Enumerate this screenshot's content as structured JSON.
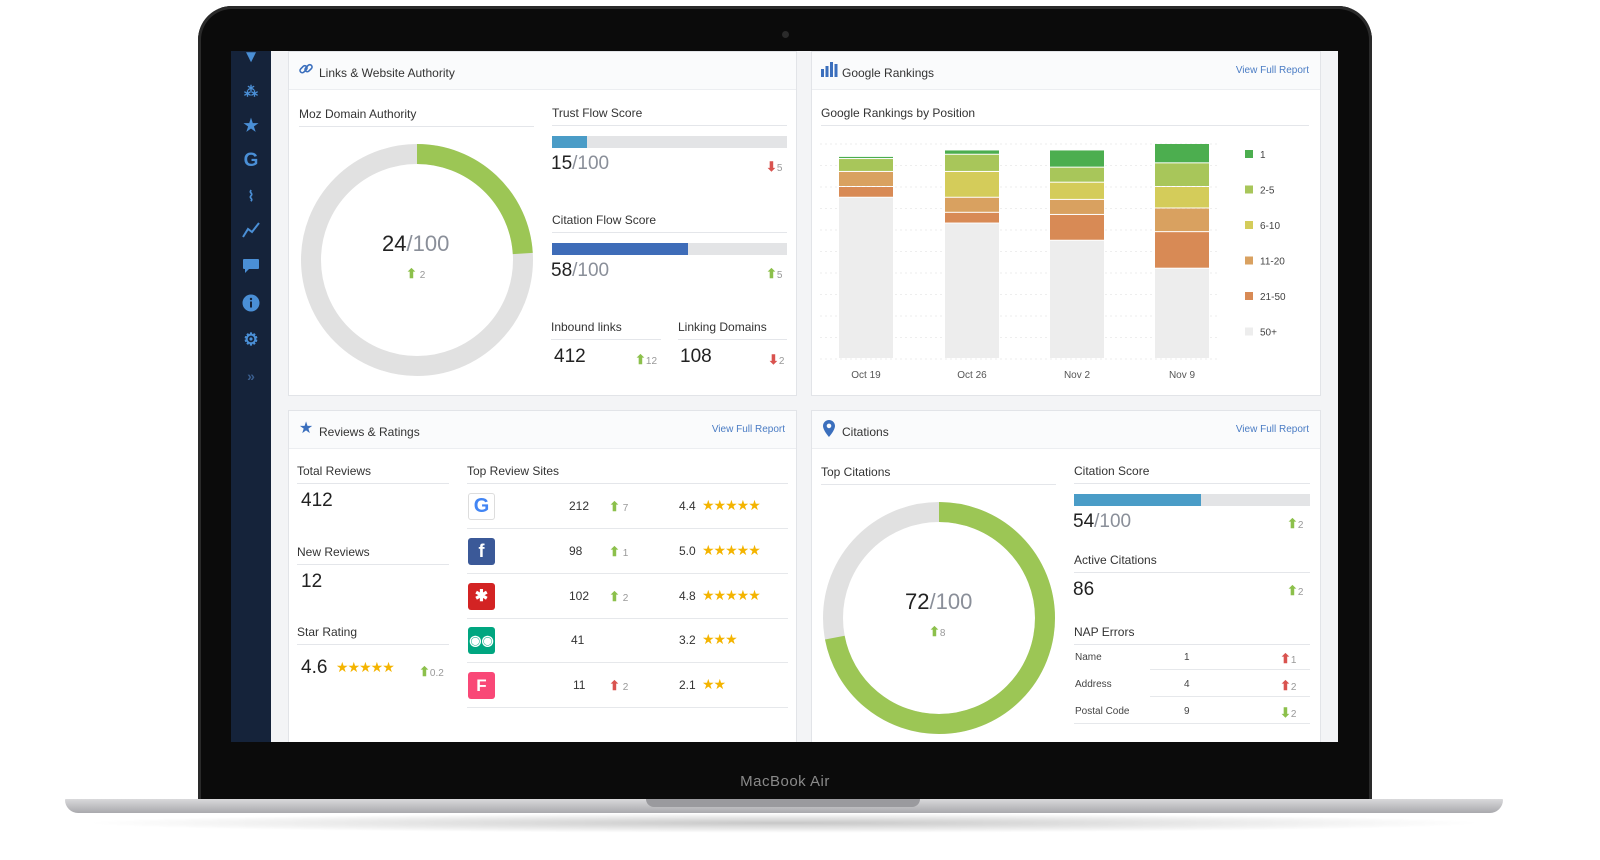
{
  "device": {
    "brand": "MacBook Air"
  },
  "sidebar": {
    "icons": [
      "map-pin-icon",
      "network-icon",
      "star-icon",
      "google-icon",
      "activity-icon",
      "trend-icon",
      "chat-icon",
      "info-icon",
      "gear-icon",
      "expand-icon"
    ]
  },
  "links": {
    "title": "Links & Website Authority",
    "moz": {
      "label": "Moz Domain Authority",
      "value": "24",
      "den": "/100",
      "change": "2",
      "fraction": 0.24
    },
    "trust": {
      "label": "Trust Flow Score",
      "value": "15",
      "den": "/100",
      "change": "5",
      "fraction": 0.15,
      "color": "#4a9cc7"
    },
    "citation_flow": {
      "label": "Citation Flow Score",
      "value": "58",
      "den": "/100",
      "change": "5",
      "fraction": 0.58,
      "color": "#3e6cb8"
    },
    "inbound": {
      "label": "Inbound links",
      "value": "412",
      "change": "12"
    },
    "linking": {
      "label": "Linking Domains",
      "value": "108",
      "change": "2"
    }
  },
  "rankings": {
    "title": "Google Rankings",
    "view_full": "View Full Report",
    "subtitle": "Google Rankings by Position"
  },
  "chart_data": {
    "type": "bar",
    "stacked": true,
    "categories": [
      "Oct 19",
      "Oct 26",
      "Nov 2",
      "Nov 9"
    ],
    "series": [
      {
        "name": "50+",
        "color": "#ededed",
        "values": [
          75,
          63,
          55,
          42
        ]
      },
      {
        "name": "21-50",
        "color": "#d88a55",
        "values": [
          5,
          5,
          12,
          17
        ]
      },
      {
        "name": "11-20",
        "color": "#d9a160",
        "values": [
          7,
          7,
          7,
          11
        ]
      },
      {
        "name": "6-10",
        "color": "#d4cc5a",
        "values": [
          0,
          12,
          8,
          10
        ]
      },
      {
        "name": "2-5",
        "color": "#a8c65a",
        "values": [
          6,
          8,
          7,
          11
        ]
      },
      {
        "name": "1",
        "color": "#4cae4f",
        "values": [
          1,
          2,
          8,
          9
        ]
      }
    ],
    "ylim": [
      0,
      100
    ],
    "legend": "right"
  },
  "reviews": {
    "title": "Reviews & Ratings",
    "view_full": "View Full Report",
    "total": {
      "label": "Total Reviews",
      "value": "412"
    },
    "new": {
      "label": "New Reviews",
      "value": "12"
    },
    "star": {
      "label": "Star Rating",
      "value": "4.6",
      "change": "0.2",
      "stars": "★★★★★"
    },
    "sites_label": "Top Review Sites",
    "sites": [
      {
        "name": "google",
        "count": "212",
        "change": "7",
        "rating": "4.4",
        "stars": "★★★★★",
        "dir": "up"
      },
      {
        "name": "facebook",
        "count": "98",
        "change": "1",
        "rating": "5.0",
        "stars": "★★★★★",
        "dir": "up"
      },
      {
        "name": "yelp",
        "count": "102",
        "change": "2",
        "rating": "4.8",
        "stars": "★★★★★",
        "dir": "up"
      },
      {
        "name": "tripadvisor",
        "count": "41",
        "change": "",
        "rating": "3.2",
        "stars": "★★★",
        "dir": ""
      },
      {
        "name": "foursquare",
        "count": "11",
        "change": "2",
        "rating": "2.1",
        "stars": "★★",
        "dir": "down"
      }
    ]
  },
  "citations": {
    "title": "Citations",
    "view_full": "View Full Report",
    "top_label": "Top Citations",
    "donut": {
      "value": "72",
      "den": "/100",
      "change": "8",
      "fraction": 0.72
    },
    "score": {
      "label": "Citation Score",
      "value": "54",
      "den": "/100",
      "change": "2",
      "fraction": 0.54,
      "color": "#4a9cc7"
    },
    "active": {
      "label": "Active Citations",
      "value": "86",
      "change": "2"
    },
    "nap_label": "NAP Errors",
    "nap": [
      {
        "name": "Name",
        "value": "1",
        "change": "1",
        "dir": "down-red"
      },
      {
        "name": "Address",
        "value": "4",
        "change": "2",
        "dir": "down-red"
      },
      {
        "name": "Postal Code",
        "value": "9",
        "change": "2",
        "dir": "down-green"
      }
    ]
  }
}
